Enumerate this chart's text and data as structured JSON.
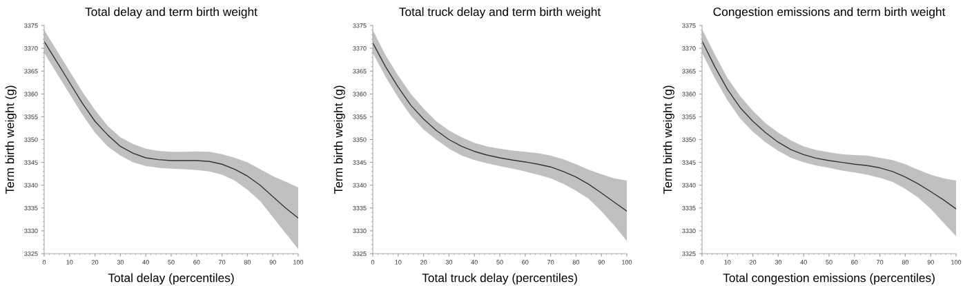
{
  "chart_data": [
    {
      "type": "line",
      "title": "Total delay and term birth weight",
      "xlabel": "Total delay (percentiles)",
      "ylabel": "Term birth weight (g)",
      "x": [
        0,
        5,
        10,
        15,
        20,
        25,
        30,
        35,
        40,
        45,
        50,
        55,
        60,
        65,
        70,
        75,
        80,
        85,
        90,
        95,
        100
      ],
      "series": [
        {
          "color": "#333333",
          "values": [
            3371.5,
            3367,
            3362.5,
            3358,
            3354,
            3351,
            3348.5,
            3347,
            3346,
            3345.6,
            3345.4,
            3345.4,
            3345.4,
            3345.2,
            3344.6,
            3343.5,
            3342,
            3340,
            3337.5,
            3335,
            3332.8
          ],
          "lower": [
            3369,
            3364.5,
            3360,
            3355.5,
            3351.5,
            3348.5,
            3346.5,
            3345,
            3344.2,
            3343.8,
            3343.6,
            3343.5,
            3343.3,
            3343,
            3342.3,
            3341,
            3339,
            3336.5,
            3333,
            3329.5,
            3326
          ],
          "upper": [
            3374,
            3369.5,
            3365,
            3360.5,
            3356.5,
            3353,
            3350.5,
            3349,
            3348,
            3347.5,
            3347.3,
            3347.3,
            3347.4,
            3347.3,
            3346.8,
            3346,
            3345,
            3343.5,
            3342,
            3340.8,
            3339.5
          ]
        }
      ],
      "xlim": [
        0,
        100
      ],
      "xticks": [
        0,
        10,
        20,
        30,
        40,
        50,
        60,
        70,
        80,
        90,
        100
      ],
      "ylim": [
        3325,
        3375
      ],
      "yticks": [
        3325,
        3330,
        3335,
        3340,
        3345,
        3350,
        3355,
        3360,
        3365,
        3370,
        3375
      ],
      "grid": false
    },
    {
      "type": "line",
      "title": "Total truck delay and term birth weight",
      "xlabel": "Total truck delay (percentiles)",
      "ylabel": "Term birth weight (g)",
      "x": [
        0,
        5,
        10,
        15,
        20,
        25,
        30,
        35,
        40,
        45,
        50,
        55,
        60,
        65,
        70,
        75,
        80,
        85,
        90,
        95,
        100
      ],
      "series": [
        {
          "color": "#333333",
          "values": [
            3371.2,
            3366,
            3361.5,
            3357.5,
            3354.5,
            3352,
            3350,
            3348.5,
            3347.4,
            3346.6,
            3346,
            3345.5,
            3345.1,
            3344.6,
            3344,
            3343,
            3341.8,
            3340.2,
            3338.3,
            3336.3,
            3334.3
          ],
          "lower": [
            3369,
            3363.8,
            3359.2,
            3355.2,
            3352.2,
            3350,
            3348,
            3346.5,
            3345.5,
            3344.8,
            3344.2,
            3343.6,
            3343,
            3342.3,
            3341.5,
            3340.3,
            3338.8,
            3337,
            3334.3,
            3331.2,
            3327.8
          ],
          "upper": [
            3374,
            3368.5,
            3364,
            3360,
            3356.8,
            3354,
            3352,
            3350.5,
            3349.3,
            3348.5,
            3348,
            3347.6,
            3347.3,
            3347,
            3346.5,
            3345.7,
            3344.6,
            3343.4,
            3342.4,
            3341.5,
            3341
          ]
        }
      ],
      "xlim": [
        0,
        100
      ],
      "xticks": [
        0,
        10,
        20,
        30,
        40,
        50,
        60,
        70,
        80,
        90,
        100
      ],
      "ylim": [
        3325,
        3375
      ],
      "yticks": [
        3325,
        3330,
        3335,
        3340,
        3345,
        3350,
        3355,
        3360,
        3365,
        3370,
        3375
      ],
      "grid": false
    },
    {
      "type": "line",
      "title": "Congestion emissions and term birth weight",
      "xlabel": "Total congestion emissions (percentiles)",
      "ylabel": "Term birth weight (g)",
      "x": [
        0,
        5,
        10,
        15,
        20,
        25,
        30,
        35,
        40,
        45,
        50,
        55,
        60,
        65,
        70,
        75,
        80,
        85,
        90,
        95,
        100
      ],
      "series": [
        {
          "color": "#333333",
          "values": [
            3371.6,
            3366,
            3361,
            3357,
            3354,
            3351.5,
            3349.4,
            3347.8,
            3346.7,
            3345.9,
            3345.4,
            3345,
            3344.6,
            3344.3,
            3343.8,
            3343,
            3341.8,
            3340.3,
            3338.6,
            3336.8,
            3334.8
          ],
          "lower": [
            3369,
            3363.5,
            3358.6,
            3354.6,
            3351.7,
            3349.4,
            3347.5,
            3346,
            3345,
            3344.3,
            3343.8,
            3343.2,
            3342.8,
            3342.3,
            3341.6,
            3340.7,
            3339.2,
            3337.3,
            3334.8,
            3331.8,
            3328.8
          ],
          "upper": [
            3374.2,
            3368.7,
            3363.5,
            3359.5,
            3356.3,
            3353.6,
            3351.5,
            3349.8,
            3348.5,
            3347.7,
            3347.2,
            3346.8,
            3346.6,
            3346.5,
            3346,
            3345.5,
            3344.6,
            3343.4,
            3342.3,
            3341.5,
            3341
          ]
        }
      ],
      "xlim": [
        0,
        100
      ],
      "xticks": [
        0,
        10,
        20,
        30,
        40,
        50,
        60,
        70,
        80,
        90,
        100
      ],
      "ylim": [
        3325,
        3375
      ],
      "yticks": [
        3325,
        3330,
        3335,
        3340,
        3345,
        3350,
        3355,
        3360,
        3365,
        3370,
        3375
      ],
      "grid": false
    }
  ]
}
